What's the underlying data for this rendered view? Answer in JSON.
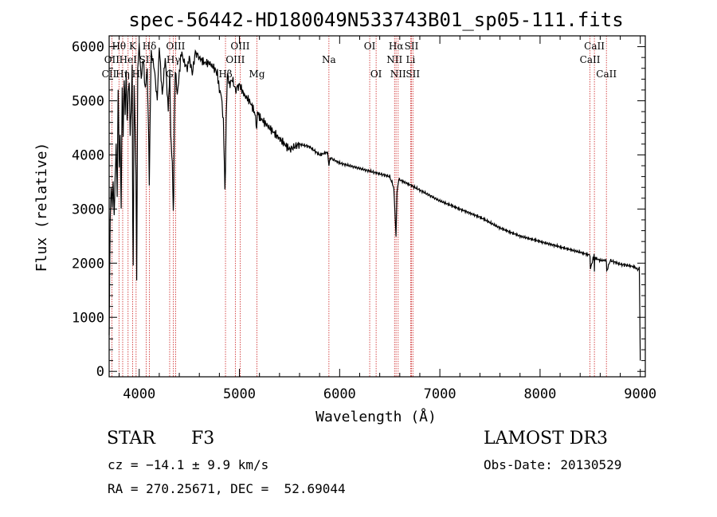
{
  "chart_data": {
    "type": "line",
    "title": "spec-56442-HD180049N533743B01_sp05-111.fits",
    "xlabel": "Wavelength (Å)",
    "ylabel": "Flux (relative)",
    "xlim": [
      3700,
      9050
    ],
    "ylim": [
      -100,
      6200
    ],
    "xticks": [
      4000,
      5000,
      6000,
      7000,
      8000,
      9000
    ],
    "yticks": [
      0,
      1000,
      2000,
      3000,
      4000,
      5000,
      6000
    ],
    "series": [
      {
        "name": "flux",
        "x": [
          3700,
          3710,
          3720,
          3730,
          3740,
          3750,
          3760,
          3770,
          3780,
          3790,
          3800,
          3810,
          3820,
          3830,
          3840,
          3850,
          3860,
          3870,
          3880,
          3890,
          3900,
          3910,
          3920,
          3930,
          3935,
          3940,
          3950,
          3960,
          3968,
          3975,
          3985,
          4000,
          4020,
          4040,
          4060,
          4080,
          4095,
          4101,
          4108,
          4120,
          4150,
          4180,
          4200,
          4230,
          4260,
          4290,
          4305,
          4315,
          4330,
          4340,
          4345,
          4350,
          4360,
          4380,
          4400,
          4420,
          4450,
          4480,
          4500,
          4530,
          4560,
          4600,
          4650,
          4700,
          4750,
          4780,
          4800,
          4820,
          4840,
          4855,
          4861,
          4868,
          4880,
          4900,
          4930,
          4960,
          5000,
          5050,
          5100,
          5150,
          5172,
          5180,
          5200,
          5250,
          5300,
          5350,
          5400,
          5450,
          5500,
          5600,
          5700,
          5800,
          5880,
          5893,
          5905,
          5950,
          6000,
          6100,
          6200,
          6300,
          6400,
          6500,
          6540,
          6555,
          6563,
          6572,
          6590,
          6620,
          6700,
          6800,
          6900,
          7000,
          7200,
          7400,
          7600,
          7800,
          8000,
          8200,
          8400,
          8498,
          8502,
          8540,
          8542,
          8545,
          8600,
          8662,
          8665,
          8700,
          8800,
          8900,
          8950,
          8980,
          8990,
          9000
        ],
        "y": [
          700,
          2800,
          3400,
          3000,
          3500,
          2900,
          3600,
          4200,
          3200,
          5200,
          3800,
          4400,
          3000,
          5200,
          4300,
          5400,
          4800,
          5600,
          4600,
          5100,
          5300,
          4400,
          4900,
          5700,
          2800,
          1900,
          5200,
          4400,
          3600,
          1700,
          5600,
          6000,
          5400,
          5800,
          5200,
          5600,
          4300,
          3400,
          4600,
          5900,
          5600,
          5000,
          6000,
          5100,
          5800,
          4800,
          5600,
          4400,
          3800,
          2900,
          3200,
          4600,
          5600,
          5100,
          5500,
          5900,
          5700,
          5600,
          5800,
          5500,
          5900,
          5800,
          5700,
          5700,
          5600,
          5500,
          5200,
          5100,
          4600,
          3400,
          3700,
          4700,
          5500,
          5300,
          5400,
          5200,
          5300,
          5100,
          5000,
          4800,
          4500,
          4800,
          4700,
          4600,
          4500,
          4400,
          4300,
          4200,
          4100,
          4200,
          4150,
          4000,
          4050,
          3800,
          3950,
          3900,
          3850,
          3800,
          3750,
          3700,
          3650,
          3600,
          3400,
          2800,
          2500,
          3300,
          3550,
          3520,
          3450,
          3350,
          3250,
          3150,
          3000,
          2850,
          2650,
          2500,
          2400,
          2300,
          2200,
          2150,
          1900,
          2150,
          1850,
          2100,
          2050,
          2050,
          1850,
          2050,
          1980,
          1950,
          1920,
          1880,
          1900,
          200
        ]
      }
    ],
    "lines": [
      {
        "label": "Hθ",
        "x": 3798,
        "row": 1
      },
      {
        "label": "OII",
        "x": 3727,
        "row": 2
      },
      {
        "label": "CII",
        "x": 3700,
        "row": 3
      },
      {
        "label": "Hη",
        "x": 3835,
        "row": 3
      },
      {
        "label": "HeI",
        "x": 3889,
        "row": 2
      },
      {
        "label": "K",
        "x": 3934,
        "row": 1
      },
      {
        "label": "H",
        "x": 3969,
        "row": 3
      },
      {
        "label": "SII",
        "x": 4069,
        "row": 2
      },
      {
        "label": "Hδ",
        "x": 4102,
        "row": 1
      },
      {
        "label": "OIII",
        "x": 4363,
        "row": 1
      },
      {
        "label": "G",
        "x": 4304,
        "row": 3
      },
      {
        "label": "Hγ",
        "x": 4341,
        "row": 2
      },
      {
        "label": "Hβ",
        "x": 4861,
        "row": 3
      },
      {
        "label": "OIII",
        "x": 5007,
        "row": 1
      },
      {
        "label": "OIII",
        "x": 4959,
        "row": 2
      },
      {
        "label": "Mg",
        "x": 5175,
        "row": 3
      },
      {
        "label": "Na",
        "x": 5893,
        "row": 2
      },
      {
        "label": "OI",
        "x": 6300,
        "row": 1
      },
      {
        "label": "OI",
        "x": 6364,
        "row": 3
      },
      {
        "label": "Hα",
        "x": 6563,
        "row": 1
      },
      {
        "label": "NII",
        "x": 6548,
        "row": 2
      },
      {
        "label": "NII",
        "x": 6584,
        "row": 3
      },
      {
        "label": "SII",
        "x": 6717,
        "row": 1
      },
      {
        "label": "Li",
        "x": 6708,
        "row": 2
      },
      {
        "label": "SII",
        "x": 6731,
        "row": 3
      },
      {
        "label": "CaII",
        "x": 8542,
        "row": 1
      },
      {
        "label": "CaII",
        "x": 8498,
        "row": 2
      },
      {
        "label": "CaII",
        "x": 8662,
        "row": 3
      }
    ]
  },
  "info": {
    "class_label": "STAR",
    "subclass": "F3",
    "survey": "LAMOST DR3",
    "cz": "cz = −14.1 ± 9.9 km/s",
    "obs_date": "Obs-Date: 20130529",
    "coords": "RA = 270.25671, DEC =  52.69044"
  },
  "colors": {
    "axis": "#000000",
    "spectrum": "#000000",
    "line_marker": "#cc2222"
  }
}
